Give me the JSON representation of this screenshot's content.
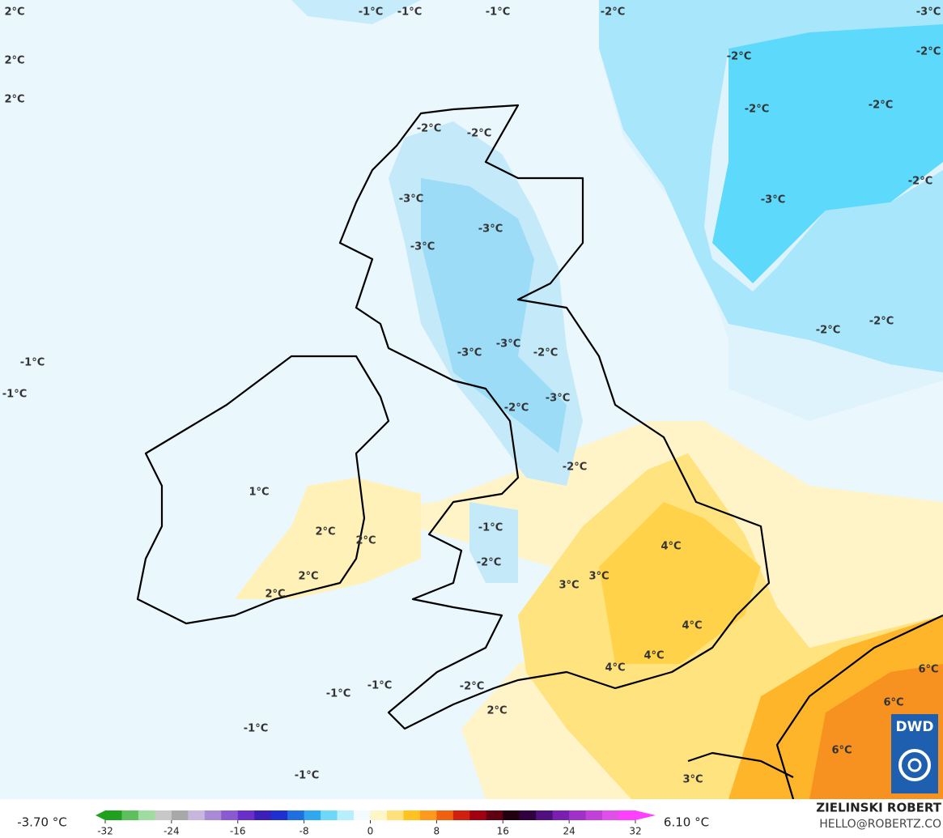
{
  "map": {
    "labels": [
      "2°C",
      "2°C",
      "2°C",
      "-1°C",
      "-1°C",
      "-1°C",
      "-2°C",
      "-3°C",
      "-2°C",
      "-2°C",
      "-2°C",
      "-2°C",
      "-2°C",
      "-3°C",
      "-2°C",
      "-2°C",
      "-2°C",
      "-2°C",
      "-3°C",
      "-3°C",
      "-3°C",
      "-3°C",
      "-3°C",
      "-2°C",
      "-3°C",
      "-2°C",
      "-2°C",
      "-1°C",
      "-1°C",
      "1°C",
      "2°C",
      "2°C",
      "2°C",
      "2°C",
      "-1°C",
      "-2°C",
      "4°C",
      "3°C",
      "3°C",
      "4°C",
      "4°C",
      "4°C",
      "-1°C",
      "-1°C",
      "-2°C",
      "2°C",
      "-1°C",
      "-1°C",
      "6°C",
      "6°C",
      "6°C",
      "3°C"
    ]
  },
  "colorbar": {
    "min_label": "-3.70 °C",
    "max_label": "6.10 °C",
    "range": [
      -32,
      32
    ],
    "ticks": [
      -32,
      -24,
      -16,
      -8,
      0,
      8,
      16,
      24,
      32
    ],
    "colors": [
      "#1fa01f",
      "#5cc15c",
      "#9fdc9f",
      "#c8c8c8",
      "#a8a8a8",
      "#c8b6de",
      "#a98ad6",
      "#8a5ad0",
      "#6a2fc8",
      "#3b1fb8",
      "#1f2fd0",
      "#1f6fe0",
      "#2fa8f0",
      "#6fd8f8",
      "#b8effc",
      "#f4fbff",
      "#fff6c8",
      "#ffe07a",
      "#ffc21f",
      "#ff9a1f",
      "#f06010",
      "#d02010",
      "#a00010",
      "#600010",
      "#200010",
      "#300040",
      "#501080",
      "#7a20b0",
      "#a030c8",
      "#c040d8",
      "#e050e8",
      "#ff40ff"
    ]
  },
  "credit": {
    "name": "ZIELINSKI ROBERT",
    "email": "HELLO@ROBERTZ.CO"
  },
  "logo": {
    "text": "DWD"
  }
}
